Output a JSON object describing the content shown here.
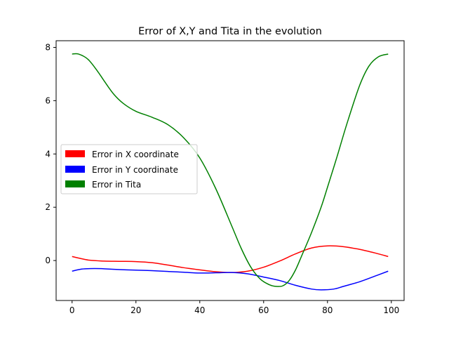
{
  "chart_data": {
    "type": "line",
    "title": "Error of X,Y and Tita in the evolution",
    "xlabel": "",
    "ylabel": "",
    "xlim": [
      -5,
      104
    ],
    "ylim": [
      -1.5,
      8.25
    ],
    "xticks": [
      0,
      20,
      40,
      60,
      80,
      100
    ],
    "yticks": [
      0,
      2,
      4,
      6,
      8
    ],
    "grid": false,
    "legend_position": "center-left",
    "series": [
      {
        "name": "Error in X coordinate",
        "color": "#ff0000",
        "x": [
          0,
          5,
          10,
          15,
          20,
          25,
          30,
          35,
          40,
          45,
          50,
          55,
          60,
          65,
          70,
          75,
          80,
          85,
          90,
          95,
          99
        ],
        "y": [
          0.15,
          0.02,
          -0.02,
          -0.03,
          -0.04,
          -0.08,
          -0.17,
          -0.27,
          -0.35,
          -0.42,
          -0.45,
          -0.4,
          -0.25,
          -0.02,
          0.25,
          0.47,
          0.55,
          0.52,
          0.42,
          0.28,
          0.15
        ]
      },
      {
        "name": "Error in Y coordinate",
        "color": "#0000ff",
        "x": [
          0,
          3,
          7,
          10,
          15,
          20,
          25,
          30,
          35,
          40,
          45,
          50,
          55,
          60,
          65,
          70,
          75,
          78,
          82,
          85,
          90,
          95,
          99
        ],
        "y": [
          -0.4,
          -0.32,
          -0.3,
          -0.31,
          -0.34,
          -0.36,
          -0.38,
          -0.41,
          -0.44,
          -0.47,
          -0.46,
          -0.45,
          -0.5,
          -0.62,
          -0.75,
          -0.93,
          -1.07,
          -1.1,
          -1.07,
          -0.97,
          -0.8,
          -0.58,
          -0.4
        ]
      },
      {
        "name": "Error in Tita",
        "color": "#008000",
        "x": [
          0,
          2,
          5,
          8,
          10,
          13,
          16,
          20,
          25,
          30,
          35,
          40,
          45,
          50,
          53,
          56,
          59,
          62,
          64,
          66,
          68,
          70,
          72,
          75,
          78,
          80,
          83,
          86,
          90,
          93,
          96,
          99
        ],
        "y": [
          7.75,
          7.75,
          7.55,
          7.1,
          6.75,
          6.25,
          5.9,
          5.6,
          5.38,
          5.1,
          4.6,
          3.85,
          2.7,
          1.3,
          0.45,
          -0.25,
          -0.7,
          -0.92,
          -0.97,
          -0.95,
          -0.75,
          -0.35,
          0.2,
          1.05,
          2.0,
          2.75,
          3.9,
          5.1,
          6.55,
          7.3,
          7.65,
          7.75
        ]
      }
    ]
  }
}
